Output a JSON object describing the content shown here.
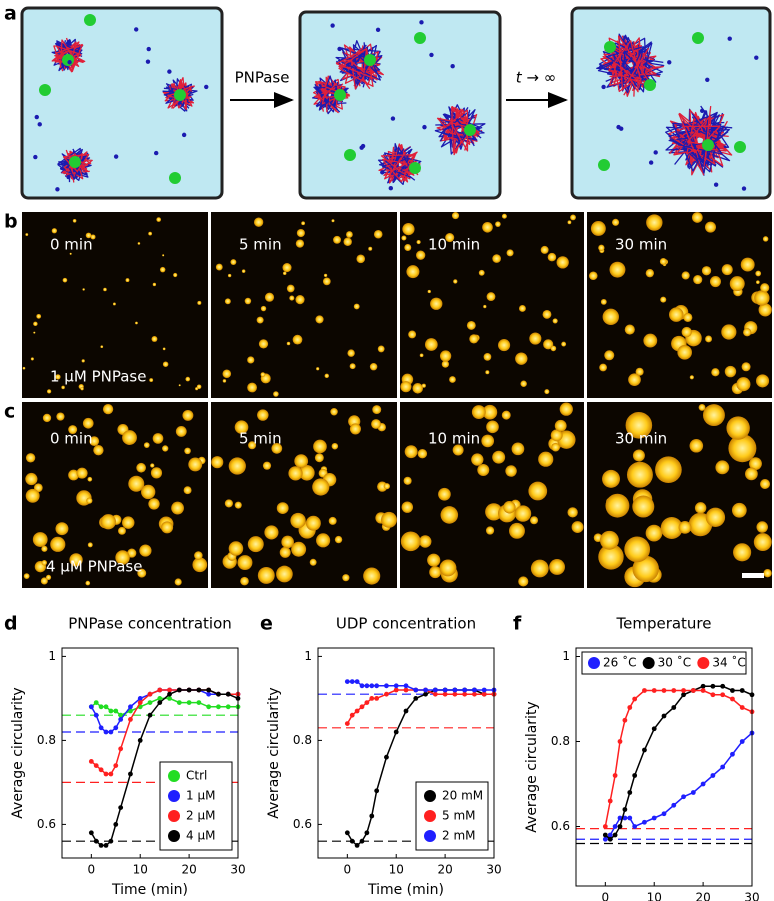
{
  "panel_labels": [
    "a",
    "b",
    "c",
    "d",
    "e",
    "f"
  ],
  "schematic": {
    "arrow_labels": [
      "PNPase",
      "t → ∞"
    ]
  },
  "micrographs": {
    "time_labels": [
      "0 min",
      "5 min",
      "10 min",
      "30 min"
    ],
    "row_labels": [
      "1 μM PNPase",
      "4 μM PNPase"
    ]
  },
  "chart_data": [
    {
      "type": "scatter",
      "title": "PNPase concentration",
      "x_label": "Time (min)",
      "y_label": "Average circularity",
      "x": [
        0,
        1,
        2,
        3,
        4,
        5,
        6,
        8,
        10,
        12,
        14,
        16,
        18,
        20,
        22,
        24,
        26,
        28,
        30
      ],
      "xlim": [
        -6,
        30
      ],
      "xticks": [
        0,
        10,
        20,
        30
      ],
      "ylim": [
        0.52,
        1.02
      ],
      "yticks": [
        0.6,
        0.8,
        1
      ],
      "legend": "lower right",
      "series": [
        {
          "name": "Ctrl",
          "color": "#22dd22",
          "baseline": 0.86,
          "values": [
            0.88,
            0.89,
            0.88,
            0.88,
            0.87,
            0.87,
            0.86,
            0.87,
            0.88,
            0.89,
            0.9,
            0.9,
            0.89,
            0.89,
            0.89,
            0.88,
            0.88,
            0.88,
            0.88
          ]
        },
        {
          "name": "1 μM",
          "color": "#1f1fff",
          "baseline": 0.82,
          "values": [
            0.88,
            0.86,
            0.83,
            0.82,
            0.82,
            0.83,
            0.85,
            0.88,
            0.9,
            0.91,
            0.92,
            0.92,
            0.92,
            0.92,
            0.92,
            0.91,
            0.91,
            0.91,
            0.91
          ]
        },
        {
          "name": "2 μM",
          "color": "#ff2020",
          "baseline": 0.7,
          "values": [
            0.75,
            0.74,
            0.73,
            0.72,
            0.72,
            0.74,
            0.78,
            0.85,
            0.89,
            0.91,
            0.92,
            0.92,
            0.92,
            0.92,
            0.92,
            0.92,
            0.91,
            0.91,
            0.91
          ]
        },
        {
          "name": "4 μM",
          "color": "#000000",
          "baseline": 0.56,
          "values": [
            0.58,
            0.56,
            0.55,
            0.55,
            0.56,
            0.6,
            0.64,
            0.72,
            0.8,
            0.86,
            0.89,
            0.91,
            0.92,
            0.92,
            0.92,
            0.92,
            0.91,
            0.91,
            0.9
          ]
        }
      ]
    },
    {
      "type": "scatter",
      "title": "UDP concentration",
      "x_label": "Time (min)",
      "y_label": "Average circularity",
      "x": [
        0,
        1,
        2,
        3,
        4,
        5,
        6,
        8,
        10,
        12,
        14,
        16,
        18,
        20,
        22,
        24,
        26,
        28,
        30
      ],
      "xlim": [
        -6,
        30
      ],
      "xticks": [
        0,
        10,
        20,
        30
      ],
      "ylim": [
        0.52,
        1.02
      ],
      "yticks": [
        0.6,
        0.8,
        1
      ],
      "legend": "lower right",
      "series": [
        {
          "name": "20 mM",
          "color": "#000000",
          "baseline": 0.56,
          "values": [
            0.58,
            0.56,
            0.55,
            0.56,
            0.58,
            0.62,
            0.68,
            0.76,
            0.82,
            0.87,
            0.9,
            0.91,
            0.92,
            0.92,
            0.92,
            0.92,
            0.92,
            0.91,
            0.91
          ]
        },
        {
          "name": "5 mM",
          "color": "#ff2020",
          "baseline": 0.83,
          "values": [
            0.84,
            0.86,
            0.87,
            0.88,
            0.89,
            0.9,
            0.9,
            0.91,
            0.92,
            0.92,
            0.92,
            0.92,
            0.91,
            0.91,
            0.91,
            0.91,
            0.91,
            0.91,
            0.91
          ]
        },
        {
          "name": "2 mM",
          "color": "#1f1fff",
          "baseline": 0.91,
          "values": [
            0.94,
            0.94,
            0.94,
            0.93,
            0.93,
            0.93,
            0.93,
            0.93,
            0.93,
            0.93,
            0.92,
            0.92,
            0.92,
            0.92,
            0.92,
            0.92,
            0.92,
            0.92,
            0.92
          ]
        }
      ]
    },
    {
      "type": "scatter",
      "title": "Temperature",
      "x_label": "Time (min)",
      "y_label": "Average circularity",
      "x": [
        0,
        1,
        2,
        3,
        4,
        5,
        6,
        8,
        10,
        12,
        14,
        16,
        18,
        20,
        22,
        24,
        26,
        28,
        30
      ],
      "xlim": [
        -6,
        30
      ],
      "xticks": [
        0,
        10,
        20,
        30
      ],
      "ylim": [
        0.46,
        1.02
      ],
      "yticks": [
        0.6,
        0.8,
        1
      ],
      "legend": "top",
      "series": [
        {
          "name": "26 ˚C",
          "color": "#1f1fff",
          "baseline": 0.57,
          "values": [
            0.57,
            0.58,
            0.6,
            0.62,
            0.62,
            0.62,
            0.6,
            0.61,
            0.62,
            0.63,
            0.65,
            0.67,
            0.68,
            0.7,
            0.72,
            0.74,
            0.77,
            0.8,
            0.82
          ]
        },
        {
          "name": "30 ˚C",
          "color": "#000000",
          "baseline": 0.56,
          "values": [
            0.58,
            0.57,
            0.58,
            0.6,
            0.64,
            0.68,
            0.72,
            0.78,
            0.83,
            0.86,
            0.88,
            0.91,
            0.92,
            0.93,
            0.93,
            0.93,
            0.92,
            0.92,
            0.91
          ]
        },
        {
          "name": "34 ˚C",
          "color": "#ff2020",
          "baseline": 0.595,
          "values": [
            0.6,
            0.66,
            0.72,
            0.8,
            0.85,
            0.88,
            0.9,
            0.92,
            0.92,
            0.92,
            0.92,
            0.92,
            0.92,
            0.92,
            0.91,
            0.91,
            0.9,
            0.88,
            0.87
          ]
        }
      ]
    }
  ]
}
